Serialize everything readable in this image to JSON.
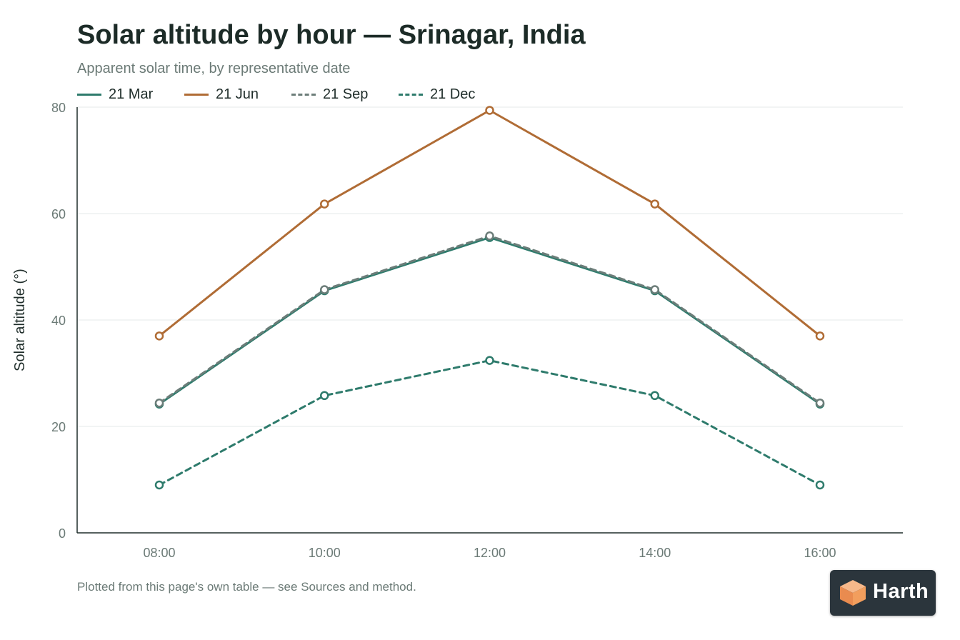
{
  "chart_data": {
    "type": "line",
    "title": "Solar altitude by hour — Srinagar, India",
    "subtitle": "Apparent solar time, by representative date",
    "ylabel": "Solar altitude (°)",
    "xlabel": "",
    "x": [
      "08:00",
      "10:00",
      "12:00",
      "14:00",
      "16:00"
    ],
    "ylim": [
      0,
      80
    ],
    "yticks": [
      "0",
      "20",
      "40",
      "60",
      "80"
    ],
    "grid": "horizontal",
    "legend_placement": "top-left",
    "series": [
      {
        "name": "21 Mar",
        "values": [
          24.2,
          45.5,
          55.5,
          45.5,
          24.2
        ],
        "color": "#2e7b6c",
        "dash": "solid"
      },
      {
        "name": "21 Jun",
        "values": [
          37.0,
          61.8,
          79.4,
          61.8,
          37.0
        ],
        "color": "#b06c35",
        "dash": "solid"
      },
      {
        "name": "21 Sep",
        "values": [
          24.4,
          45.7,
          55.8,
          45.7,
          24.4
        ],
        "color": "#6c7d79",
        "dash": "dashed"
      },
      {
        "name": "21 Dec",
        "values": [
          9.0,
          25.8,
          32.4,
          25.8,
          9.0
        ],
        "color": "#2e7b6c",
        "dash": "dashed"
      }
    ]
  },
  "footnote": "Plotted from this page's own table — see Sources and method.",
  "logo": {
    "text": "Harth",
    "icon": "box-icon"
  }
}
